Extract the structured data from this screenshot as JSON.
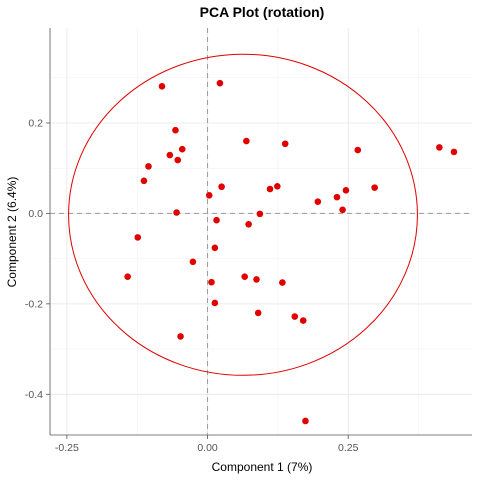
{
  "chart_data": {
    "type": "scatter",
    "title": "PCA Plot (rotation)",
    "xlabel": "Component 1 (7%)",
    "ylabel": "Component 2 (6.4%)",
    "xlim": [
      -0.28,
      0.47
    ],
    "ylim": [
      -0.49,
      0.41
    ],
    "x_ticks": [
      -0.25,
      0.0,
      0.25
    ],
    "x_tick_labels": [
      "-0.25",
      "0.00",
      "0.25"
    ],
    "y_ticks": [
      -0.4,
      -0.2,
      0.0,
      0.2
    ],
    "y_tick_labels": [
      "-0.4",
      "-0.2",
      "0.0",
      "0.2"
    ],
    "x_minor_ticks": [
      -0.125,
      0.125,
      0.375
    ],
    "y_minor_ticks": [
      -0.3,
      -0.1,
      0.1,
      0.3
    ],
    "grid": true,
    "zero_lines": {
      "x": 0,
      "y": 0,
      "style": "dashed"
    },
    "point_color": "#e00000",
    "circle": {
      "center": [
        0.063,
        -0.003
      ],
      "radius_x": 0.31,
      "radius_y": 0.355,
      "color": "#e00000"
    },
    "points": [
      {
        "x": -0.081,
        "y": 0.281
      },
      {
        "x": 0.022,
        "y": 0.288
      },
      {
        "x": -0.057,
        "y": 0.184
      },
      {
        "x": 0.069,
        "y": 0.16
      },
      {
        "x": 0.138,
        "y": 0.154
      },
      {
        "x": -0.067,
        "y": 0.129
      },
      {
        "x": -0.045,
        "y": 0.142
      },
      {
        "x": -0.053,
        "y": 0.118
      },
      {
        "x": -0.105,
        "y": 0.104
      },
      {
        "x": -0.113,
        "y": 0.072
      },
      {
        "x": 0.267,
        "y": 0.14
      },
      {
        "x": 0.412,
        "y": 0.146
      },
      {
        "x": 0.438,
        "y": 0.136
      },
      {
        "x": 0.025,
        "y": 0.059
      },
      {
        "x": 0.111,
        "y": 0.054
      },
      {
        "x": 0.124,
        "y": 0.06
      },
      {
        "x": 0.246,
        "y": 0.051
      },
      {
        "x": 0.297,
        "y": 0.057
      },
      {
        "x": 0.23,
        "y": 0.036
      },
      {
        "x": 0.196,
        "y": 0.026
      },
      {
        "x": 0.24,
        "y": 0.008
      },
      {
        "x": 0.003,
        "y": 0.04
      },
      {
        "x": -0.055,
        "y": 0.002
      },
      {
        "x": 0.016,
        "y": -0.015
      },
      {
        "x": 0.093,
        "y": -0.001
      },
      {
        "x": 0.073,
        "y": -0.024
      },
      {
        "x": -0.124,
        "y": -0.053
      },
      {
        "x": 0.013,
        "y": -0.076
      },
      {
        "x": -0.026,
        "y": -0.107
      },
      {
        "x": -0.142,
        "y": -0.14
      },
      {
        "x": 0.066,
        "y": -0.14
      },
      {
        "x": 0.087,
        "y": -0.146
      },
      {
        "x": 0.007,
        "y": -0.152
      },
      {
        "x": 0.133,
        "y": -0.153
      },
      {
        "x": 0.013,
        "y": -0.198
      },
      {
        "x": 0.09,
        "y": -0.22
      },
      {
        "x": 0.155,
        "y": -0.228
      },
      {
        "x": 0.17,
        "y": -0.237
      },
      {
        "x": -0.048,
        "y": -0.272
      },
      {
        "x": 0.174,
        "y": -0.459
      }
    ]
  }
}
